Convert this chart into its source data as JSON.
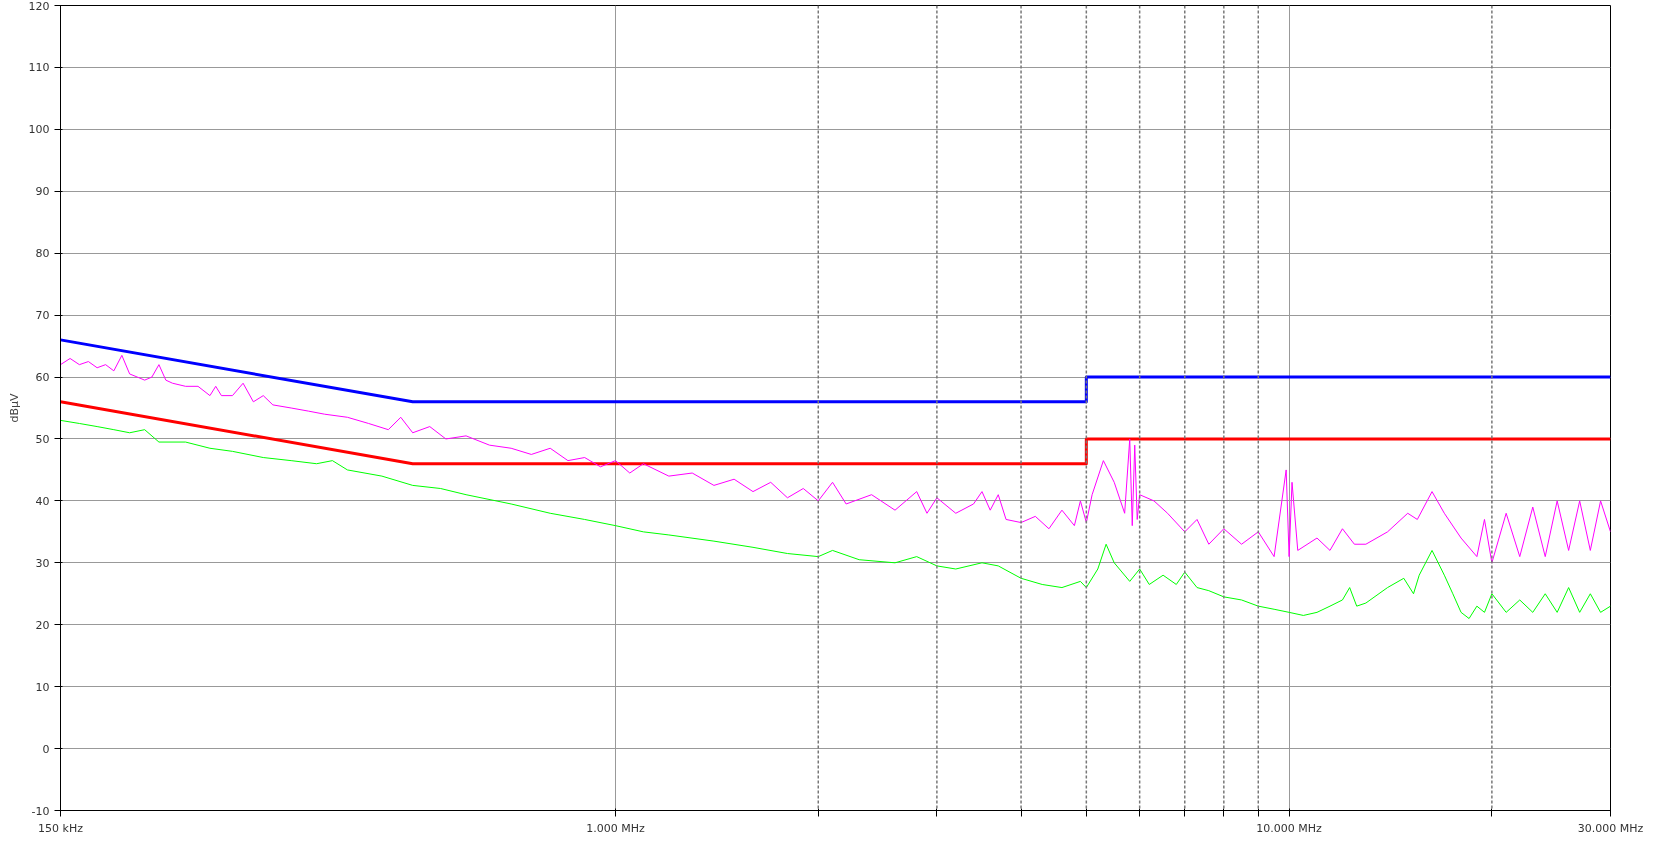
{
  "chart_data": {
    "type": "line",
    "ylabel": "dBµV",
    "log": "x",
    "grid": true,
    "marker": "none",
    "line_style": "solid",
    "xlim": [
      150,
      30000
    ],
    "ylim": [
      -10,
      120
    ],
    "xticks": [
      {
        "value": 150,
        "label": "150 kHz"
      },
      {
        "value": 1000,
        "label": "1.000 MHz"
      },
      {
        "value": 2000,
        "label": null
      },
      {
        "value": 3000,
        "label": null
      },
      {
        "value": 4000,
        "label": null
      },
      {
        "value": 5000,
        "label": null
      },
      {
        "value": 6000,
        "label": null
      },
      {
        "value": 7000,
        "label": null
      },
      {
        "value": 8000,
        "label": null
      },
      {
        "value": 9000,
        "label": null
      },
      {
        "value": 10000,
        "label": "10.000 MHz"
      },
      {
        "value": 20000,
        "label": null
      },
      {
        "value": 30000,
        "label": "30.000 MHz"
      }
    ],
    "yticks": [
      -10,
      0,
      10,
      20,
      30,
      40,
      50,
      60,
      70,
      80,
      90,
      100,
      110,
      120
    ],
    "series": [
      {
        "color": "#0000ff",
        "x": [
          150,
          500,
          5000,
          5000,
          30000
        ],
        "values": [
          66,
          56,
          56,
          60,
          60
        ]
      },
      {
        "color": "#ff0000",
        "x": [
          150,
          500,
          5000,
          5000,
          30000
        ],
        "values": [
          56,
          46,
          46,
          50,
          50
        ]
      },
      {
        "color": "#ff00ff",
        "x": [
          150,
          155,
          160,
          165,
          170,
          175,
          180,
          185,
          190,
          195,
          200,
          205,
          210,
          215,
          220,
          230,
          240,
          250,
          255,
          260,
          270,
          280,
          290,
          300,
          310,
          330,
          350,
          370,
          400,
          430,
          460,
          480,
          500,
          530,
          560,
          600,
          650,
          700,
          750,
          800,
          850,
          900,
          950,
          1000,
          1050,
          1100,
          1200,
          1300,
          1400,
          1500,
          1600,
          1700,
          1800,
          1900,
          2000,
          2100,
          2200,
          2400,
          2600,
          2800,
          2900,
          3000,
          3200,
          3400,
          3500,
          3600,
          3700,
          3800,
          4000,
          4200,
          4400,
          4600,
          4800,
          4900,
          5000,
          5100,
          5300,
          5500,
          5700,
          5800,
          5850,
          5900,
          5950,
          6000,
          6300,
          6600,
          7000,
          7300,
          7600,
          8000,
          8500,
          9000,
          9500,
          9900,
          10000,
          10100,
          10300,
          11000,
          11500,
          12000,
          12500,
          13000,
          14000,
          15000,
          15500,
          16300,
          17000,
          18000,
          19000,
          19500,
          20000,
          21000,
          22000,
          23000,
          24000,
          25000,
          26000,
          27000,
          28000,
          29000,
          30000
        ],
        "values": [
          62,
          63,
          62,
          62.5,
          61.5,
          62,
          61,
          63.5,
          60.5,
          60,
          59.5,
          60,
          62,
          59.5,
          59,
          58.5,
          58.5,
          57,
          58.5,
          57,
          57,
          59,
          56,
          57,
          55.5,
          55,
          54.5,
          54,
          53.5,
          52.5,
          51.5,
          53.5,
          51,
          52,
          50,
          50.5,
          49,
          48.5,
          47.5,
          48.5,
          46.5,
          47,
          45.5,
          46.5,
          44.5,
          46,
          44,
          44.5,
          42.5,
          43.5,
          41.5,
          43,
          40.5,
          42,
          40,
          43,
          39.5,
          41,
          38.5,
          41.5,
          38,
          40.5,
          38,
          39.5,
          41.5,
          38.5,
          41,
          37,
          36.5,
          37.5,
          35.5,
          38.5,
          36,
          40,
          36.5,
          41,
          46.5,
          43,
          38,
          50,
          36,
          49,
          37,
          41,
          40,
          38,
          35,
          37,
          33,
          35.5,
          33,
          35,
          31,
          45,
          31,
          43,
          32,
          34,
          32,
          35.5,
          33,
          33,
          35,
          38,
          37,
          41.5,
          38,
          34,
          31,
          37,
          30,
          38,
          31,
          39,
          31,
          40,
          32,
          40,
          32,
          40,
          35
        ]
      },
      {
        "color": "#00ff00",
        "x": [
          150,
          160,
          170,
          180,
          190,
          200,
          210,
          230,
          250,
          270,
          300,
          330,
          360,
          380,
          400,
          450,
          500,
          550,
          600,
          700,
          800,
          900,
          1000,
          1100,
          1200,
          1400,
          1600,
          1800,
          2000,
          2100,
          2300,
          2600,
          2800,
          3000,
          3200,
          3500,
          3700,
          4000,
          4300,
          4600,
          4900,
          5000,
          5200,
          5350,
          5500,
          5800,
          6000,
          6200,
          6500,
          6800,
          7000,
          7300,
          7600,
          8000,
          8500,
          9000,
          9500,
          10000,
          10500,
          11000,
          11500,
          12000,
          12300,
          12600,
          13000,
          14000,
          14800,
          15300,
          15600,
          16300,
          17000,
          17500,
          18000,
          18500,
          19000,
          19500,
          20000,
          21000,
          22000,
          23000,
          24000,
          25000,
          26000,
          27000,
          28000,
          29000,
          30000
        ],
        "values": [
          53,
          52.5,
          52,
          51.5,
          51,
          51.5,
          49.5,
          49.5,
          48.5,
          48,
          47,
          46.5,
          46,
          46.5,
          45,
          44,
          42.5,
          42,
          41,
          39.5,
          38,
          37,
          36,
          35,
          34.5,
          33.5,
          32.5,
          31.5,
          31,
          32,
          30.5,
          30,
          31,
          29.5,
          29,
          30,
          29.5,
          27.5,
          26.5,
          26,
          27,
          26,
          29,
          33,
          30,
          27,
          29,
          26.5,
          28,
          26.5,
          28.5,
          26,
          25.5,
          24.5,
          24,
          23,
          22.5,
          22,
          21.5,
          22,
          23,
          24,
          26,
          23,
          23.5,
          26,
          27.5,
          25,
          28,
          32,
          28,
          25,
          22,
          21,
          23,
          22,
          25,
          22,
          24,
          22,
          25,
          22,
          26,
          22,
          25,
          22,
          23
        ]
      }
    ]
  }
}
